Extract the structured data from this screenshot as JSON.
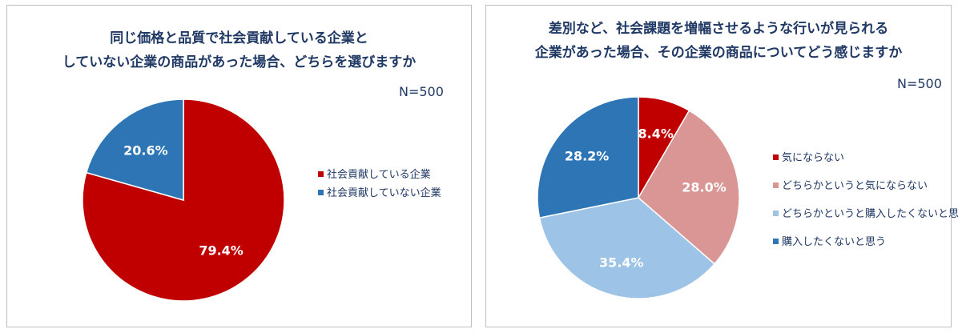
{
  "chart_data": [
    {
      "type": "pie",
      "title_lines": [
        "同じ価格と品質で社会貢献している企業と",
        "していない企業の商品があった場合、どちらを選びますか"
      ],
      "n_label": "N=500",
      "slices": [
        {
          "label": "社会貢献している企業",
          "value": 79.4,
          "value_label": "79.4%",
          "color": "#c00000"
        },
        {
          "label": "社会貢献していない企業",
          "value": 20.6,
          "value_label": "20.6%",
          "color": "#2e75b6"
        }
      ]
    },
    {
      "type": "pie",
      "title_lines": [
        "差別など、社会課題を増幅させるような行いが見られる",
        "企業があった場合、その企業の商品についてどう感じますか"
      ],
      "n_label": "N=500",
      "slices": [
        {
          "label": "気にならない",
          "value": 8.4,
          "value_label": "8.4%",
          "color": "#c00000"
        },
        {
          "label": "どちらかというと気にならない",
          "value": 28.0,
          "value_label": "28.0%",
          "color": "#d99694"
        },
        {
          "label": "どちらかというと購入したくないと思う",
          "value": 35.4,
          "value_label": "35.4%",
          "color": "#9dc3e6"
        },
        {
          "label": "購入したくないと思う",
          "value": 28.2,
          "value_label": "28.2%",
          "color": "#2e75b6"
        }
      ]
    }
  ]
}
